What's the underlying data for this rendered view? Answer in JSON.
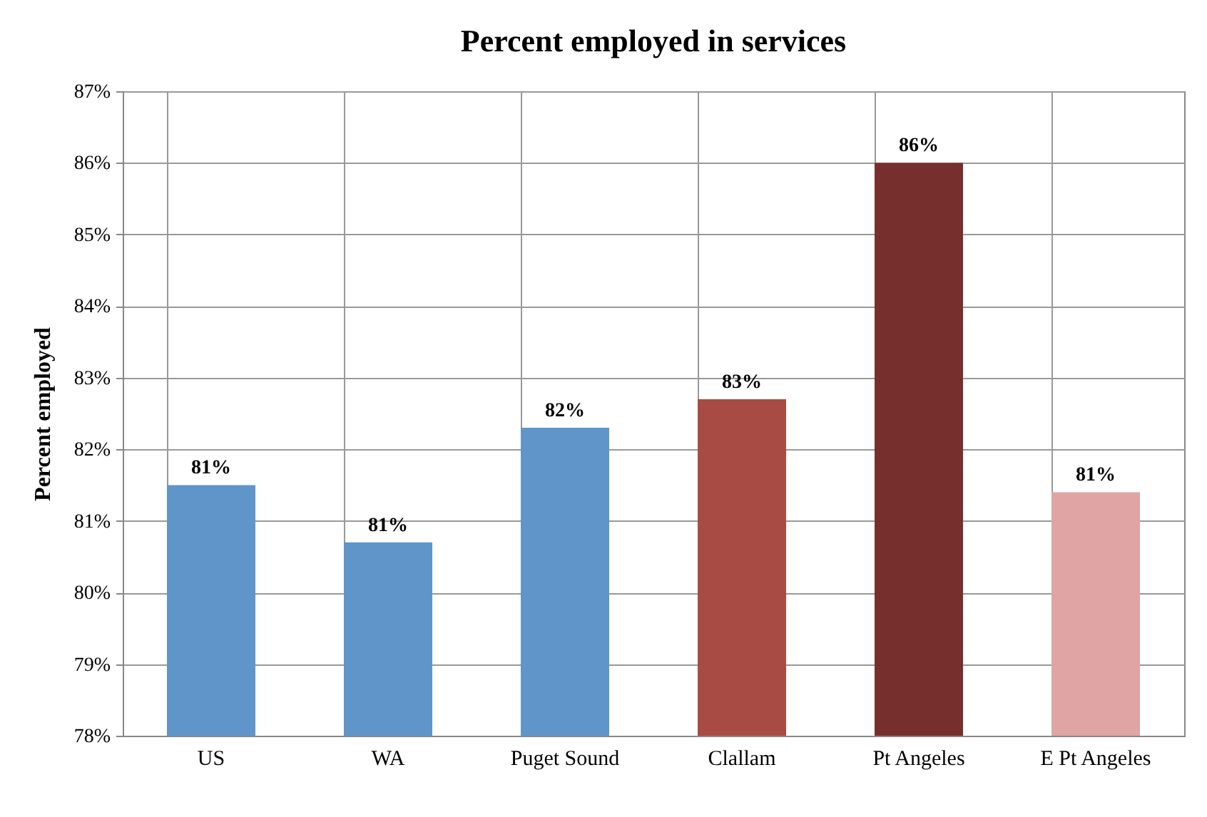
{
  "chart_data": {
    "type": "bar",
    "title": "Percent employed in services",
    "ylabel": "Percent employed",
    "categories": [
      "US",
      "WA",
      "Puget Sound",
      "Clallam",
      "Pt Angeles",
      "E Pt Angeles"
    ],
    "values": [
      81.5,
      80.7,
      82.3,
      82.7,
      86.0,
      81.4
    ],
    "colors": [
      "#5f95c9",
      "#5f95c9",
      "#5f95c9",
      "#a84b44",
      "#772f2e",
      "#e0a4a4"
    ],
    "value_labels": [
      "81%",
      "81%",
      "82%",
      "83%",
      "86%",
      "81%"
    ],
    "ylim": [
      78,
      87
    ],
    "yticks": [
      {
        "value": 78,
        "label": "78%"
      },
      {
        "value": 79,
        "label": "79%"
      },
      {
        "value": 80,
        "label": "80%"
      },
      {
        "value": 81,
        "label": "81%"
      },
      {
        "value": 82,
        "label": "82%"
      },
      {
        "value": 83,
        "label": "83%"
      },
      {
        "value": 84,
        "label": "84%"
      },
      {
        "value": 85,
        "label": "85%"
      },
      {
        "value": 86,
        "label": "86%"
      },
      {
        "value": 87,
        "label": "87%"
      }
    ],
    "grid": true
  }
}
